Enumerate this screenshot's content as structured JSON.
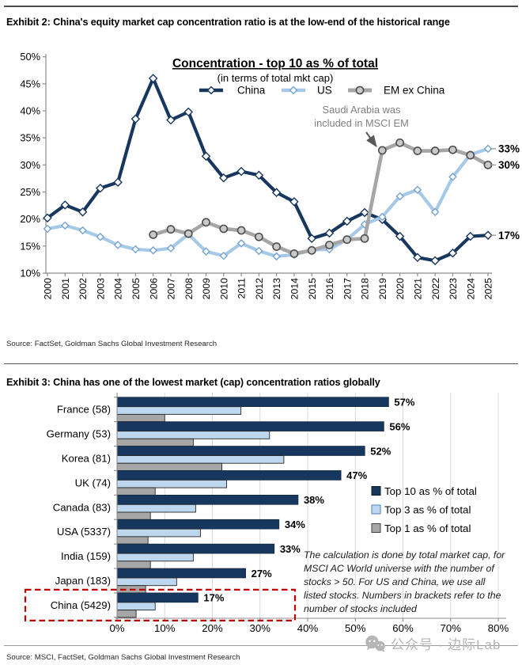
{
  "exhibit2": {
    "title": "Exhibit 2: China's equity market cap concentration ratio is at the low-end of the historical range",
    "source": "Source: FactSet, Goldman Sachs Global Investment Research"
  },
  "exhibit3": {
    "title": "Exhibit 3: China has one of the lowest market (cap) concentration ratios globally",
    "source": "Source: MSCI, FactSet, Goldman Sachs Global Investment Research"
  },
  "watermark": {
    "icon": "wechat-icon",
    "text": "公众号 · 边际Lab"
  },
  "colors": {
    "navy": "#17375e",
    "light_blue_line": "#a6c9e8",
    "light_blue_bar": "#bdd7ee",
    "gray": "#a6a6a6",
    "annotation_gray": "#7f7f7f",
    "highlight_red": "#c00000"
  },
  "chart_data": [
    {
      "type": "line",
      "title": "Concentration - top 10 as % of total",
      "subtitle": "(in terms of total mkt cap)",
      "x": [
        2000,
        2001,
        2002,
        2003,
        2004,
        2005,
        2006,
        2007,
        2008,
        2009,
        2010,
        2011,
        2012,
        2013,
        2014,
        2015,
        2016,
        2017,
        2018,
        2019,
        2020,
        2021,
        2022,
        2023,
        2024,
        2025
      ],
      "ylim": [
        10,
        50
      ],
      "yticks": [
        "10%",
        "15%",
        "20%",
        "25%",
        "30%",
        "35%",
        "40%",
        "45%",
        "50%"
      ],
      "grid": false,
      "legend_position": "top-center",
      "series": [
        {
          "name": "China",
          "color": "#17375e",
          "marker": "diamond",
          "marker_fill": "#ffffff",
          "marker_stroke": "#17375e",
          "end_label": "17%",
          "values": [
            20.2,
            22.6,
            21.3,
            25.7,
            26.8,
            38.5,
            46.0,
            38.3,
            39.8,
            31.6,
            27.6,
            28.8,
            28.1,
            24.9,
            23.2,
            16.4,
            17.4,
            19.6,
            21.2,
            19.9,
            16.8,
            12.9,
            12.3,
            13.7,
            16.8,
            17.0
          ]
        },
        {
          "name": "US",
          "color": "#a6c9e8",
          "marker": "diamond",
          "marker_fill": "#ffffff",
          "marker_stroke": "#74a3d4",
          "end_label": "33%",
          "values": [
            18.2,
            18.8,
            17.9,
            16.7,
            15.2,
            14.4,
            14.2,
            14.6,
            17.2,
            14.0,
            13.2,
            15.5,
            14.1,
            13.1,
            13.4,
            14.3,
            14.4,
            16.2,
            19.0,
            20.4,
            24.2,
            25.4,
            21.3,
            27.8,
            31.9,
            33.0
          ]
        },
        {
          "name": "EM ex China",
          "color": "#a6a6a6",
          "marker": "circle",
          "marker_fill": "#c9c9c9",
          "marker_stroke": "#4d4d4d",
          "end_label": "30%",
          "values": [
            null,
            null,
            null,
            null,
            null,
            null,
            17.1,
            18.1,
            17.3,
            19.4,
            18.2,
            17.9,
            16.7,
            14.9,
            13.6,
            14.2,
            15.2,
            16.2,
            16.4,
            32.7,
            34.1,
            32.6,
            32.6,
            32.8,
            31.8,
            30.0
          ]
        }
      ],
      "annotation": {
        "lines": [
          "Saudi Arabia was",
          "included in MSCI EM"
        ],
        "points_to_year": 2019,
        "color": "#7f7f7f"
      }
    },
    {
      "type": "bar",
      "orientation": "horizontal",
      "categories": [
        "France (58)",
        "Germany (53)",
        "Korea (81)",
        "UK (74)",
        "Canada (83)",
        "USA (5337)",
        "India (159)",
        "Japan (183)",
        "China (5429)"
      ],
      "series": [
        {
          "name": "Top 10 as % of total",
          "color": "#17375e",
          "show_labels": true,
          "values": [
            57,
            56,
            52,
            47,
            38,
            34,
            33,
            27,
            17
          ]
        },
        {
          "name": "Top 3 as % of total",
          "color": "#bdd7ee",
          "values": [
            26,
            32,
            35,
            23,
            16.5,
            17.5,
            16,
            12.5,
            8
          ]
        },
        {
          "name": "Top 1 as % of total",
          "color": "#a6a6a6",
          "values": [
            10,
            16,
            22,
            8,
            7,
            6.5,
            7,
            6,
            4
          ]
        }
      ],
      "xlim": [
        0,
        80
      ],
      "xticks": [
        "0%",
        "10%",
        "20%",
        "30%",
        "40%",
        "50%",
        "60%",
        "70%",
        "80%"
      ],
      "grid": true,
      "legend_position": "right",
      "value_label_suffix": "%",
      "highlight": {
        "category": "China (5429)",
        "style": "red-dashed-box",
        "color": "#c00000"
      },
      "note_lines": [
        "The calculation is done by total market cap, for",
        "MSCI AC World universe with the number of",
        "stocks > 50. For US and China, we use all",
        "listed stocks. Numbers in brackets refer to the",
        "number of stocks included"
      ]
    }
  ]
}
